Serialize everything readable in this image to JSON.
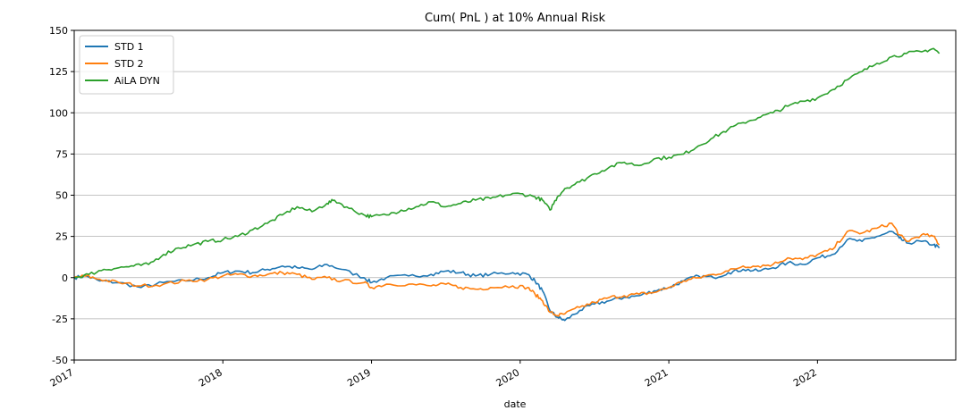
{
  "chart_data": {
    "type": "line",
    "title": "Cum( PnL ) at 10% Annual Risk",
    "xlabel": "date",
    "ylabel": "",
    "xlim": [
      2017.0,
      2022.93
    ],
    "ylim": [
      -50,
      150
    ],
    "x_ticks": [
      2017,
      2018,
      2019,
      2020,
      2021,
      2022
    ],
    "x_tick_labels": [
      "2017",
      "2018",
      "2019",
      "2020",
      "2021",
      "2022"
    ],
    "y_ticks": [
      -50,
      -25,
      0,
      25,
      50,
      75,
      100,
      125,
      150
    ],
    "y_tick_labels": [
      "-50",
      "-25",
      "0",
      "25",
      "50",
      "75",
      "100",
      "125",
      "150"
    ],
    "grid": "horizontal",
    "legend_position": "top-left",
    "series": [
      {
        "name": "STD 1",
        "color": "#1f77b4",
        "points": [
          [
            2017.0,
            0
          ],
          [
            2017.08,
            1
          ],
          [
            2017.17,
            -2
          ],
          [
            2017.3,
            -3
          ],
          [
            2017.45,
            -6
          ],
          [
            2017.6,
            -3
          ],
          [
            2017.75,
            -2
          ],
          [
            2017.9,
            0
          ],
          [
            2018.0,
            3
          ],
          [
            2018.1,
            4
          ],
          [
            2018.2,
            3
          ],
          [
            2018.3,
            5
          ],
          [
            2018.4,
            7
          ],
          [
            2018.5,
            6
          ],
          [
            2018.6,
            5
          ],
          [
            2018.7,
            8
          ],
          [
            2018.8,
            5
          ],
          [
            2018.95,
            0
          ],
          [
            2019.0,
            -3
          ],
          [
            2019.1,
            0
          ],
          [
            2019.25,
            1
          ],
          [
            2019.4,
            2
          ],
          [
            2019.5,
            4
          ],
          [
            2019.6,
            3
          ],
          [
            2019.7,
            1
          ],
          [
            2019.8,
            2
          ],
          [
            2019.95,
            3
          ],
          [
            2020.05,
            2
          ],
          [
            2020.1,
            -2
          ],
          [
            2020.15,
            -8
          ],
          [
            2020.2,
            -20
          ],
          [
            2020.25,
            -24
          ],
          [
            2020.3,
            -26
          ],
          [
            2020.4,
            -20
          ],
          [
            2020.5,
            -16
          ],
          [
            2020.6,
            -14
          ],
          [
            2020.7,
            -12
          ],
          [
            2020.8,
            -11
          ],
          [
            2020.9,
            -8
          ],
          [
            2021.0,
            -6
          ],
          [
            2021.1,
            -2
          ],
          [
            2021.2,
            1
          ],
          [
            2021.3,
            0
          ],
          [
            2021.4,
            3
          ],
          [
            2021.5,
            5
          ],
          [
            2021.6,
            4
          ],
          [
            2021.7,
            6
          ],
          [
            2021.8,
            9
          ],
          [
            2021.9,
            8
          ],
          [
            2022.0,
            12
          ],
          [
            2022.1,
            14
          ],
          [
            2022.2,
            23
          ],
          [
            2022.3,
            22
          ],
          [
            2022.4,
            25
          ],
          [
            2022.5,
            28
          ],
          [
            2022.55,
            24
          ],
          [
            2022.6,
            21
          ],
          [
            2022.7,
            22
          ],
          [
            2022.78,
            20
          ],
          [
            2022.82,
            18
          ]
        ]
      },
      {
        "name": "STD 2",
        "color": "#ff7f0e",
        "points": [
          [
            2017.0,
            0
          ],
          [
            2017.08,
            1
          ],
          [
            2017.17,
            -1
          ],
          [
            2017.3,
            -3
          ],
          [
            2017.45,
            -5
          ],
          [
            2017.6,
            -4
          ],
          [
            2017.75,
            -2
          ],
          [
            2017.9,
            -1
          ],
          [
            2018.0,
            1
          ],
          [
            2018.1,
            2
          ],
          [
            2018.2,
            1
          ],
          [
            2018.3,
            2
          ],
          [
            2018.4,
            3
          ],
          [
            2018.5,
            2
          ],
          [
            2018.6,
            -1
          ],
          [
            2018.7,
            0
          ],
          [
            2018.8,
            -2
          ],
          [
            2018.95,
            -3
          ],
          [
            2019.0,
            -6
          ],
          [
            2019.1,
            -4
          ],
          [
            2019.25,
            -4
          ],
          [
            2019.4,
            -5
          ],
          [
            2019.5,
            -4
          ],
          [
            2019.6,
            -6
          ],
          [
            2019.7,
            -7
          ],
          [
            2019.8,
            -6
          ],
          [
            2019.95,
            -5
          ],
          [
            2020.05,
            -6
          ],
          [
            2020.1,
            -10
          ],
          [
            2020.15,
            -14
          ],
          [
            2020.2,
            -21
          ],
          [
            2020.25,
            -23
          ],
          [
            2020.3,
            -22
          ],
          [
            2020.4,
            -18
          ],
          [
            2020.5,
            -15
          ],
          [
            2020.6,
            -12
          ],
          [
            2020.7,
            -11
          ],
          [
            2020.8,
            -10
          ],
          [
            2020.9,
            -9
          ],
          [
            2021.0,
            -6
          ],
          [
            2021.1,
            -2
          ],
          [
            2021.2,
            0
          ],
          [
            2021.3,
            2
          ],
          [
            2021.4,
            4
          ],
          [
            2021.5,
            7
          ],
          [
            2021.6,
            7
          ],
          [
            2021.7,
            8
          ],
          [
            2021.8,
            12
          ],
          [
            2021.9,
            11
          ],
          [
            2022.0,
            14
          ],
          [
            2022.1,
            17
          ],
          [
            2022.2,
            28
          ],
          [
            2022.3,
            27
          ],
          [
            2022.4,
            30
          ],
          [
            2022.5,
            33
          ],
          [
            2022.55,
            26
          ],
          [
            2022.6,
            22
          ],
          [
            2022.7,
            26
          ],
          [
            2022.78,
            25
          ],
          [
            2022.82,
            20
          ]
        ]
      },
      {
        "name": "AiLA DYN",
        "color": "#2ca02c",
        "points": [
          [
            2017.0,
            0
          ],
          [
            2017.1,
            2
          ],
          [
            2017.2,
            5
          ],
          [
            2017.3,
            6
          ],
          [
            2017.4,
            7
          ],
          [
            2017.5,
            8
          ],
          [
            2017.6,
            14
          ],
          [
            2017.7,
            18
          ],
          [
            2017.8,
            20
          ],
          [
            2017.9,
            22
          ],
          [
            2018.0,
            23
          ],
          [
            2018.1,
            25
          ],
          [
            2018.2,
            29
          ],
          [
            2018.3,
            33
          ],
          [
            2018.4,
            38
          ],
          [
            2018.5,
            43
          ],
          [
            2018.6,
            40
          ],
          [
            2018.7,
            45
          ],
          [
            2018.75,
            47
          ],
          [
            2018.85,
            42
          ],
          [
            2018.95,
            38
          ],
          [
            2019.0,
            37
          ],
          [
            2019.1,
            38
          ],
          [
            2019.2,
            41
          ],
          [
            2019.3,
            43
          ],
          [
            2019.4,
            46
          ],
          [
            2019.5,
            43
          ],
          [
            2019.6,
            45
          ],
          [
            2019.7,
            47
          ],
          [
            2019.8,
            48
          ],
          [
            2019.9,
            50
          ],
          [
            2020.0,
            51
          ],
          [
            2020.1,
            49
          ],
          [
            2020.15,
            47
          ],
          [
            2020.2,
            41
          ],
          [
            2020.25,
            49
          ],
          [
            2020.3,
            54
          ],
          [
            2020.4,
            58
          ],
          [
            2020.5,
            63
          ],
          [
            2020.6,
            67
          ],
          [
            2020.7,
            70
          ],
          [
            2020.8,
            68
          ],
          [
            2020.9,
            72
          ],
          [
            2021.0,
            73
          ],
          [
            2021.1,
            75
          ],
          [
            2021.2,
            80
          ],
          [
            2021.3,
            85
          ],
          [
            2021.4,
            90
          ],
          [
            2021.5,
            94
          ],
          [
            2021.6,
            97
          ],
          [
            2021.7,
            100
          ],
          [
            2021.8,
            104
          ],
          [
            2021.9,
            107
          ],
          [
            2022.0,
            109
          ],
          [
            2022.1,
            114
          ],
          [
            2022.2,
            120
          ],
          [
            2022.3,
            125
          ],
          [
            2022.4,
            130
          ],
          [
            2022.5,
            134
          ],
          [
            2022.6,
            136
          ],
          [
            2022.7,
            137
          ],
          [
            2022.78,
            139
          ],
          [
            2022.82,
            136
          ]
        ]
      }
    ]
  }
}
